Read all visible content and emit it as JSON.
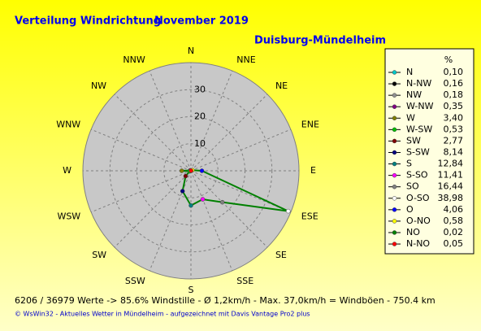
{
  "chart_data": {
    "type": "radar",
    "title": "Verteilung Windrichtung",
    "date": "November 2019",
    "subtitle": "Duisburg-Mündelheim",
    "direction_labels": [
      "N",
      "NNE",
      "NE",
      "ENE",
      "E",
      "ESE",
      "SE",
      "SSE",
      "S",
      "SSW",
      "SW",
      "WSW",
      "W",
      "WNW",
      "NW",
      "NNW"
    ],
    "rlim": [
      0,
      40
    ],
    "rticks": [
      10,
      20,
      30
    ],
    "grid": true,
    "legend_title": "%",
    "categories": [
      "N",
      "N-NW",
      "NW",
      "W-NW",
      "W",
      "W-SW",
      "SW",
      "S-SW",
      "S",
      "S-SO",
      "SO",
      "O-SO",
      "O",
      "O-NO",
      "NO",
      "N-NO"
    ],
    "values": [
      0.1,
      0.16,
      0.18,
      0.35,
      3.4,
      0.53,
      2.77,
      8.14,
      12.84,
      11.41,
      16.44,
      38.98,
      4.06,
      0.58,
      0.02,
      0.05
    ],
    "value_labels": [
      "0,10",
      "0,16",
      "0,18",
      "0,35",
      "3,40",
      "0,53",
      "2,77",
      "8,14",
      "12,84",
      "11,41",
      "16,44",
      "38,98",
      "4,06",
      "0,58",
      "0,02",
      "0,05"
    ],
    "point_colors": [
      "#00c8c8",
      "#000000",
      "#909090",
      "#800080",
      "#808000",
      "#00c000",
      "#800000",
      "#000080",
      "#008080",
      "#ff00ff",
      "#808080",
      "#ffffff",
      "#0000ff",
      "#ffff00",
      "#008000",
      "#ff0000"
    ],
    "color": "#008000"
  },
  "footer": [
    "6206 / 36979 Werte  -> 85.6% Windstille   -   Ø 1,2km/h  -  Max. 37,0km/h = Windböen   -   750.4 km",
    "© WsWin32  -  Aktuelles Wetter in Mündelheim  -  aufgezeichnet mit Davis Vantage Pro2 plus"
  ]
}
